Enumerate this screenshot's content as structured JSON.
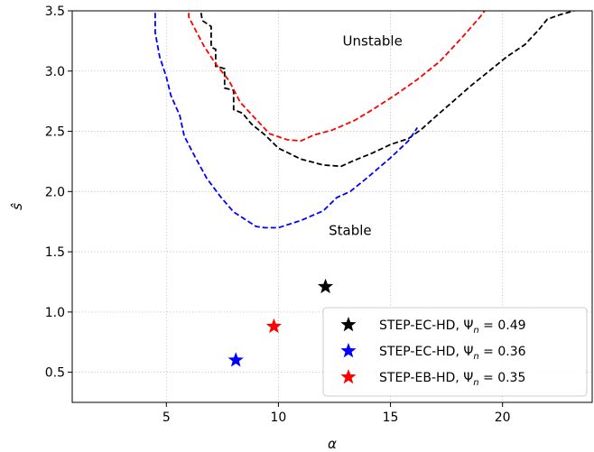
{
  "chart_data": {
    "type": "line",
    "title": "",
    "xlabel": "α",
    "ylabel": "ŝ",
    "xlim": [
      0.8,
      24.0
    ],
    "ylim": [
      0.25,
      3.5
    ],
    "xticks": [
      5,
      10,
      15,
      20
    ],
    "yticks": [
      0.5,
      1.0,
      1.5,
      2.0,
      2.5,
      3.0,
      3.5
    ],
    "xtick_labels": [
      "5",
      "10",
      "15",
      "20"
    ],
    "ytick_labels": [
      "0.5",
      "1.0",
      "1.5",
      "2.0",
      "2.5",
      "3.0",
      "3.5"
    ],
    "grid": true,
    "legend_position": "lower-right",
    "annotations": [
      {
        "text": "Unstable",
        "x": 14.2,
        "y": 3.21
      },
      {
        "text": "Stable",
        "x": 13.2,
        "y": 1.64
      }
    ],
    "boundaries": [
      {
        "color": "#000000",
        "style": "dashed",
        "points": [
          [
            6.5,
            3.55
          ],
          [
            6.6,
            3.42
          ],
          [
            7.0,
            3.37
          ],
          [
            7.0,
            3.2
          ],
          [
            7.2,
            3.18
          ],
          [
            7.2,
            3.04
          ],
          [
            7.6,
            3.02
          ],
          [
            7.6,
            2.86
          ],
          [
            8.0,
            2.84
          ],
          [
            8.0,
            2.68
          ],
          [
            8.4,
            2.65
          ],
          [
            8.8,
            2.56
          ],
          [
            9.4,
            2.47
          ],
          [
            10.0,
            2.36
          ],
          [
            11.0,
            2.27
          ],
          [
            12.0,
            2.22
          ],
          [
            12.8,
            2.21
          ],
          [
            13.4,
            2.26
          ],
          [
            14.2,
            2.32
          ],
          [
            15.0,
            2.39
          ],
          [
            15.8,
            2.44
          ],
          [
            16.4,
            2.52
          ],
          [
            17.0,
            2.62
          ],
          [
            17.8,
            2.75
          ],
          [
            18.6,
            2.88
          ],
          [
            19.4,
            3.0
          ],
          [
            20.2,
            3.12
          ],
          [
            21.0,
            3.22
          ],
          [
            21.6,
            3.34
          ],
          [
            22.0,
            3.43
          ],
          [
            22.6,
            3.47
          ],
          [
            23.2,
            3.5
          ]
        ]
      },
      {
        "color": "#0000ff",
        "style": "dashed",
        "points": [
          [
            4.5,
            3.55
          ],
          [
            4.5,
            3.32
          ],
          [
            4.7,
            3.12
          ],
          [
            5.0,
            2.95
          ],
          [
            5.2,
            2.8
          ],
          [
            5.6,
            2.63
          ],
          [
            5.8,
            2.46
          ],
          [
            6.3,
            2.28
          ],
          [
            6.8,
            2.11
          ],
          [
            7.4,
            1.96
          ],
          [
            8.0,
            1.83
          ],
          [
            9.0,
            1.71
          ],
          [
            9.4,
            1.7
          ],
          [
            10.0,
            1.7
          ],
          [
            11.0,
            1.76
          ],
          [
            12.0,
            1.84
          ],
          [
            12.6,
            1.95
          ],
          [
            13.2,
            2.0
          ],
          [
            14.0,
            2.12
          ],
          [
            15.0,
            2.28
          ],
          [
            15.8,
            2.42
          ],
          [
            16.2,
            2.53
          ]
        ]
      },
      {
        "color": "#ff0000",
        "style": "dashed",
        "points": [
          [
            6.0,
            3.55
          ],
          [
            6.0,
            3.45
          ],
          [
            6.3,
            3.34
          ],
          [
            6.7,
            3.2
          ],
          [
            7.2,
            3.06
          ],
          [
            7.8,
            2.92
          ],
          [
            8.3,
            2.74
          ],
          [
            9.0,
            2.6
          ],
          [
            9.6,
            2.48
          ],
          [
            10.4,
            2.43
          ],
          [
            11.0,
            2.42
          ],
          [
            11.6,
            2.47
          ],
          [
            12.4,
            2.51
          ],
          [
            13.4,
            2.59
          ],
          [
            14.2,
            2.68
          ],
          [
            15.2,
            2.8
          ],
          [
            16.2,
            2.93
          ],
          [
            17.2,
            3.08
          ],
          [
            18.2,
            3.28
          ],
          [
            19.0,
            3.45
          ],
          [
            19.2,
            3.5
          ]
        ]
      }
    ],
    "series": [
      {
        "name": "STEP-EC-HD, Ψn = 0.49",
        "marker": "star",
        "color": "#000000",
        "x": [
          12.1
        ],
        "y": [
          1.21
        ]
      },
      {
        "name": "STEP-EC-HD, Ψn = 0.36",
        "marker": "star",
        "color": "#0000ff",
        "x": [
          8.1
        ],
        "y": [
          0.6
        ]
      },
      {
        "name": "STEP-EB-HD, Ψn = 0.35",
        "marker": "star",
        "color": "#ff0000",
        "x": [
          9.8
        ],
        "y": [
          0.88
        ]
      }
    ],
    "legend": [
      {
        "label": "STEP-EC-HD, ",
        "sym": "Ψ",
        "sub": "n",
        "val": " = 0.49",
        "color": "#000000"
      },
      {
        "label": "STEP-EC-HD, ",
        "sym": "Ψ",
        "sub": "n",
        "val": " = 0.36",
        "color": "#0000ff"
      },
      {
        "label": "STEP-EB-HD, ",
        "sym": "Ψ",
        "sub": "n",
        "val": " = 0.35",
        "color": "#ff0000"
      }
    ]
  }
}
